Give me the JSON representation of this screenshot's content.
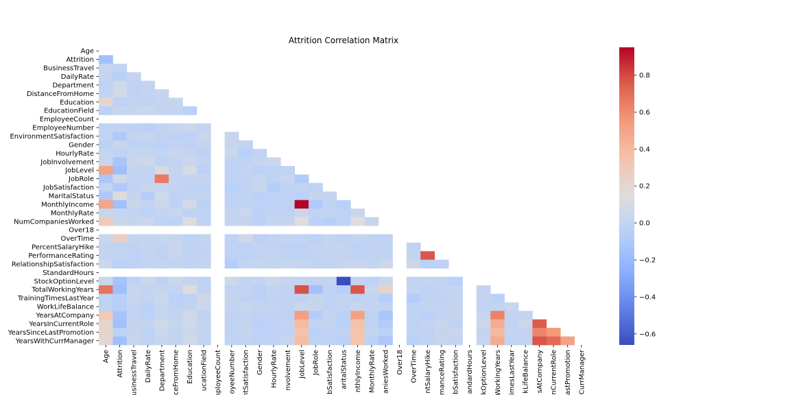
{
  "chart_data": {
    "type": "heatmap",
    "title": "Attrition Correlation Matrix",
    "mask": "upper-triangle-including-diagonal",
    "colormap": "coolwarm",
    "vmin": -0.66,
    "vmax": 0.95,
    "colorbar_ticks": [
      -0.6,
      -0.4,
      -0.2,
      0.0,
      0.2,
      0.4,
      0.6,
      0.8
    ],
    "colorbar_tick_labels": [
      "−0.6",
      "−0.4",
      "−0.2",
      "0.0",
      "0.2",
      "0.4",
      "0.6",
      "0.8"
    ],
    "labels": [
      "Age",
      "Attrition",
      "BusinessTravel",
      "DailyRate",
      "Department",
      "DistanceFromHome",
      "Education",
      "EducationField",
      "EmployeeCount",
      "EmployeeNumber",
      "EnvironmentSatisfaction",
      "Gender",
      "HourlyRate",
      "JobInvolvement",
      "JobLevel",
      "JobRole",
      "JobSatisfaction",
      "MaritalStatus",
      "MonthlyIncome",
      "MonthlyRate",
      "NumCompaniesWorked",
      "Over18",
      "OverTime",
      "PercentSalaryHike",
      "PerformanceRating",
      "RelationshipSatisfaction",
      "StandardHours",
      "StockOptionLevel",
      "TotalWorkingYears",
      "TrainingTimesLastYear",
      "WorkLifeBalance",
      "YearsAtCompany",
      "YearsInCurrentRole",
      "YearsSinceLastPromotion",
      "YearsWithCurrManager"
    ],
    "x_tick_labels_visible": [
      "Age",
      "Attrition",
      "usinessTravel",
      "DailyRate",
      "Department",
      "ceFromHome",
      "Education",
      "ucationField",
      "nployeeCount",
      "oyeeNumber",
      "ntSatisfaction",
      "Gender",
      "HourlyRate",
      "nvolvement",
      "JobLevel",
      "JobRole",
      "bSatisfaction",
      "aritalStatus",
      "nthlyIncome",
      "MonthlyRate",
      "aniesWorked",
      "Over18",
      "OverTime",
      "ntSalaryHike",
      "manceRating",
      "bSatisfaction",
      "andardHours",
      "kOptionLevel",
      "WorkingYears",
      "imesLastYear",
      "kLifeBalance",
      "sAtCompany",
      "nCurrentRole",
      "astPromotion",
      "CurrManager"
    ],
    "constant_columns": [
      "EmployeeCount",
      "Over18",
      "StandardHours"
    ],
    "lower_triangle_values": [
      [],
      [
        -0.16
      ],
      [
        0.02,
        0.0
      ],
      [
        0.01,
        -0.06,
        -0.0
      ],
      [
        -0.03,
        0.06,
        -0.01,
        0.01
      ],
      [
        -0.0,
        0.08,
        -0.02,
        -0.0,
        0.02
      ],
      [
        0.21,
        -0.03,
        0.0,
        -0.02,
        0.01,
        0.02
      ],
      [
        -0.04,
        0.03,
        0.02,
        0.04,
        0.01,
        0.0,
        -0.04
      ],
      [
        null,
        null,
        null,
        null,
        null,
        null,
        null,
        null
      ],
      [
        -0.01,
        -0.01,
        -0.02,
        -0.05,
        -0.01,
        0.03,
        0.04,
        -0.0,
        null
      ],
      [
        0.01,
        -0.1,
        0.0,
        0.02,
        -0.02,
        -0.02,
        -0.03,
        0.04,
        null,
        0.02
      ],
      [
        -0.04,
        0.03,
        -0.03,
        -0.01,
        -0.04,
        -0.0,
        -0.02,
        -0.0,
        null,
        0.02,
        0.0
      ],
      [
        0.02,
        -0.01,
        0.03,
        0.02,
        -0.0,
        0.03,
        0.02,
        -0.02,
        null,
        0.04,
        -0.05,
        -0.0
      ],
      [
        0.03,
        -0.13,
        0.04,
        0.05,
        -0.02,
        0.01,
        0.04,
        -0.0,
        null,
        -0.01,
        -0.01,
        0.02,
        0.04
      ],
      [
        0.51,
        -0.17,
        0.02,
        0.0,
        0.1,
        0.01,
        0.1,
        -0.04,
        null,
        -0.02,
        0.0,
        -0.04,
        -0.03,
        -0.01
      ],
      [
        -0.12,
        0.07,
        0.0,
        -0.01,
        0.66,
        -0.0,
        0.01,
        0.02,
        null,
        -0.01,
        -0.03,
        0.02,
        -0.01,
        0.03,
        -0.09
      ],
      [
        -0.0,
        -0.1,
        -0.03,
        0.03,
        0.02,
        -0.0,
        -0.01,
        -0.03,
        null,
        -0.05,
        -0.01,
        0.03,
        -0.07,
        -0.02,
        -0.0,
        -0.03
      ],
      [
        -0.1,
        0.16,
        0.02,
        -0.07,
        0.06,
        -0.02,
        0.0,
        0.01,
        null,
        -0.02,
        -0.01,
        -0.04,
        -0.03,
        -0.03,
        -0.04,
        0.02,
        0.02
      ],
      [
        0.5,
        -0.16,
        0.03,
        0.01,
        0.05,
        -0.02,
        0.09,
        -0.04,
        null,
        -0.01,
        -0.01,
        -0.03,
        -0.02,
        -0.02,
        0.95,
        -0.1,
        -0.01,
        -0.05
      ],
      [
        0.03,
        0.02,
        -0.0,
        -0.03,
        0.0,
        0.03,
        -0.03,
        -0.03,
        null,
        0.01,
        0.04,
        -0.04,
        -0.02,
        -0.02,
        0.04,
        -0.0,
        0.0,
        -0.03,
        0.03
      ],
      [
        0.3,
        0.04,
        0.02,
        0.04,
        -0.03,
        -0.03,
        0.13,
        -0.01,
        null,
        -0.0,
        0.01,
        -0.04,
        0.02,
        0.02,
        0.14,
        -0.04,
        -0.06,
        -0.03,
        0.15,
        0.02
      ],
      [
        null,
        null,
        null,
        null,
        null,
        null,
        null,
        null,
        null,
        null,
        null,
        null,
        null,
        null,
        null,
        null,
        null,
        null,
        null,
        null,
        null
      ],
      [
        0.03,
        0.25,
        0.02,
        0.01,
        0.03,
        0.02,
        -0.02,
        0.0,
        null,
        -0.02,
        0.07,
        -0.04,
        -0.01,
        -0.0,
        0.0,
        -0.03,
        0.02,
        -0.02,
        0.01,
        -0.01,
        -0.02,
        null
      ],
      [
        0.0,
        -0.01,
        -0.03,
        0.02,
        -0.01,
        0.04,
        -0.01,
        -0.01,
        null,
        -0.01,
        -0.03,
        0.0,
        -0.01,
        -0.02,
        -0.03,
        0.0,
        0.02,
        0.01,
        -0.03,
        -0.01,
        -0.01,
        null,
        -0.01
      ],
      [
        0.0,
        0.0,
        -0.03,
        0.0,
        -0.02,
        0.03,
        -0.02,
        -0.01,
        null,
        -0.02,
        -0.03,
        -0.01,
        -0.0,
        -0.03,
        -0.02,
        -0.01,
        0.0,
        0.01,
        -0.02,
        -0.01,
        -0.01,
        null,
        0.0,
        0.77
      ],
      [
        0.05,
        -0.05,
        -0.02,
        0.01,
        -0.0,
        0.01,
        -0.01,
        -0.0,
        null,
        -0.07,
        0.01,
        0.02,
        0.0,
        0.03,
        0.02,
        -0.01,
        -0.01,
        0.02,
        0.03,
        -0.0,
        0.05,
        null,
        0.05,
        -0.04,
        -0.03
      ],
      [
        null,
        null,
        null,
        null,
        null,
        null,
        null,
        null,
        null,
        null,
        null,
        null,
        null,
        null,
        null,
        null,
        null,
        null,
        null,
        null,
        null,
        null,
        null,
        null,
        null,
        null
      ],
      [
        0.04,
        -0.14,
        -0.03,
        0.04,
        -0.02,
        0.04,
        0.02,
        -0.02,
        null,
        0.06,
        0.0,
        0.01,
        0.05,
        0.02,
        0.01,
        -0.0,
        0.01,
        -0.66,
        0.01,
        -0.03,
        0.03,
        null,
        -0.0,
        0.01,
        0.0,
        -0.05,
        null
      ],
      [
        0.68,
        -0.17,
        0.03,
        0.01,
        0.02,
        0.0,
        0.15,
        -0.01,
        null,
        -0.01,
        -0.0,
        -0.05,
        -0.0,
        -0.01,
        0.78,
        -0.15,
        -0.02,
        -0.06,
        0.77,
        0.03,
        0.24,
        null,
        0.01,
        -0.02,
        -0.0,
        0.02,
        null,
        0.01
      ],
      [
        -0.02,
        -0.06,
        0.03,
        0.0,
        0.04,
        -0.04,
        -0.03,
        0.05,
        null,
        0.02,
        -0.02,
        -0.04,
        -0.01,
        -0.02,
        -0.02,
        0.02,
        -0.01,
        0.01,
        -0.02,
        0.0,
        -0.07,
        null,
        -0.08,
        -0.01,
        -0.02,
        0.0,
        null,
        0.01,
        -0.04
      ],
      [
        -0.02,
        -0.06,
        0.0,
        -0.04,
        0.03,
        -0.03,
        0.01,
        0.04,
        null,
        0.01,
        0.03,
        -0.0,
        -0.0,
        -0.01,
        0.04,
        0.02,
        -0.02,
        -0.0,
        0.03,
        0.01,
        -0.01,
        null,
        -0.03,
        -0.0,
        0.0,
        0.02,
        null,
        0.0,
        0.0,
        0.03
      ],
      [
        0.31,
        -0.13,
        0.01,
        -0.03,
        0.02,
        0.01,
        0.07,
        -0.02,
        null,
        -0.01,
        -0.0,
        -0.03,
        -0.02,
        -0.02,
        0.53,
        -0.08,
        -0.0,
        -0.04,
        0.51,
        -0.02,
        -0.12,
        null,
        -0.01,
        -0.04,
        0.0,
        0.02,
        null,
        0.02,
        0.63,
        0.0,
        0.01
      ],
      [
        0.21,
        -0.16,
        0.02,
        0.01,
        0.06,
        0.02,
        0.06,
        0.01,
        null,
        -0.01,
        0.02,
        -0.04,
        -0.02,
        0.01,
        0.39,
        -0.0,
        -0.0,
        -0.05,
        0.36,
        -0.01,
        -0.09,
        null,
        -0.03,
        -0.0,
        0.03,
        -0.02,
        null,
        0.05,
        0.46,
        -0.01,
        0.05,
        0.76
      ],
      [
        0.22,
        -0.03,
        0.02,
        -0.03,
        0.04,
        0.01,
        0.05,
        0.0,
        null,
        -0.01,
        0.02,
        -0.03,
        -0.03,
        -0.02,
        0.35,
        -0.04,
        -0.02,
        -0.01,
        0.34,
        0.0,
        -0.04,
        null,
        -0.01,
        -0.02,
        0.02,
        0.03,
        null,
        0.01,
        0.4,
        -0.0,
        0.01,
        0.62,
        0.55
      ],
      [
        0.2,
        -0.16,
        0.02,
        -0.03,
        0.03,
        0.01,
        0.07,
        -0.0,
        null,
        -0.01,
        -0.0,
        -0.03,
        -0.02,
        0.03,
        0.38,
        -0.02,
        -0.03,
        -0.04,
        0.34,
        -0.04,
        -0.11,
        null,
        -0.04,
        -0.01,
        0.02,
        -0.0,
        null,
        0.02,
        0.46,
        -0.0,
        0.0,
        0.77,
        0.71,
        0.51
      ]
    ]
  }
}
